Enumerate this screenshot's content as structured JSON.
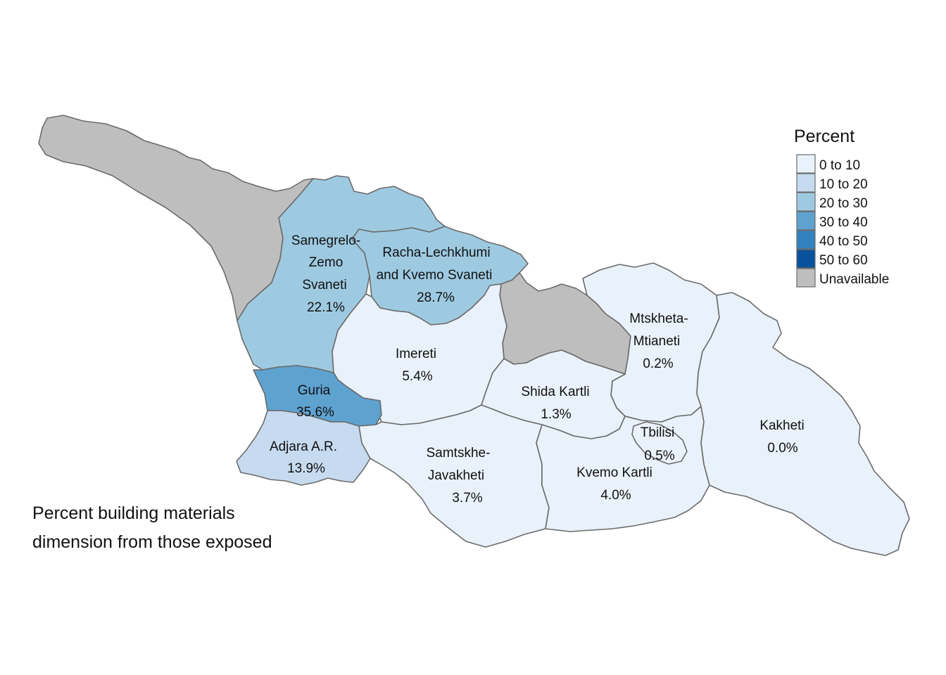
{
  "legend": {
    "title": "Percent",
    "items": [
      {
        "label": "0 to 10",
        "color": "#e9f1fa"
      },
      {
        "label": "10 to 20",
        "color": "#c6dbef"
      },
      {
        "label": "20 to 30",
        "color": "#9ecae1"
      },
      {
        "label": "30 to 40",
        "color": "#5ea2d0"
      },
      {
        "label": "40 to 50",
        "color": "#3182bd"
      },
      {
        "label": "50 to 60",
        "color": "#08519c"
      },
      {
        "label": "Unavailable",
        "color": "#bebebe"
      }
    ]
  },
  "caption": {
    "line1": "Percent building materials",
    "line2": "dimension from those exposed"
  },
  "regions": {
    "abkhazia": {
      "color": "#bebebe"
    },
    "samegrelo": {
      "name_l1": "Samegrelo-",
      "name_l2": "Zemo",
      "name_l3": "Svaneti",
      "value": "22.1%",
      "color": "#9ecae1"
    },
    "racha": {
      "name_l1": "Racha-Lechkhumi",
      "name_l2": "and Kvemo Svaneti",
      "value": "28.7%",
      "color": "#9ecae1"
    },
    "south_ossetia": {
      "color": "#bebebe"
    },
    "mtskheta": {
      "name_l1": "Mtskheta-",
      "name_l2": "Mtianeti",
      "value": "0.2%",
      "color": "#e9f1fa"
    },
    "imereti": {
      "name": "Imereti",
      "value": "5.4%",
      "color": "#e9f1fa"
    },
    "guria": {
      "name": "Guria",
      "value": "35.6%",
      "color": "#5ea2d0"
    },
    "shida": {
      "name": "Shida Kartli",
      "value": "1.3%",
      "color": "#e9f1fa"
    },
    "adjara": {
      "name": "Adjara A.R.",
      "value": "13.9%",
      "color": "#c6dbef"
    },
    "samtskhe": {
      "name_l1": "Samtskhe-",
      "name_l2": "Javakheti",
      "value": "3.7%",
      "color": "#e9f1fa"
    },
    "tbilisi": {
      "name": "Tbilisi",
      "value": "0.5%",
      "color": "#e9f1fa"
    },
    "kvemo": {
      "name": "Kvemo Kartli",
      "value": "4.0%",
      "color": "#e9f1fa"
    },
    "kakheti": {
      "name": "Kakheti",
      "value": "0.0%",
      "color": "#e9f1fa"
    }
  }
}
